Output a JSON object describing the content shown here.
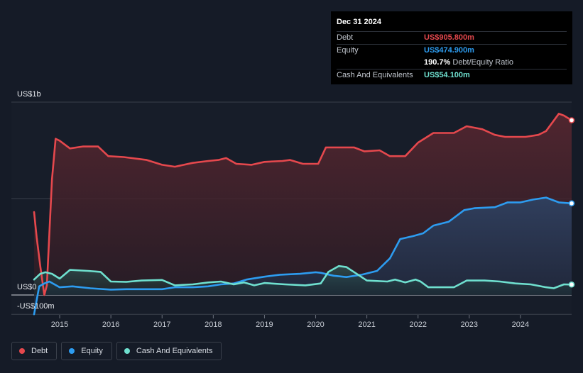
{
  "tooltip": {
    "date": "Dec 31 2024",
    "debt_label": "Debt",
    "debt_value": "US$905.800m",
    "equity_label": "Equity",
    "equity_value": "US$474.900m",
    "ratio_value": "190.7%",
    "ratio_label": "Debt/Equity Ratio",
    "cash_label": "Cash And Equivalents",
    "cash_value": "US$54.100m"
  },
  "legend": {
    "debt": "Debt",
    "equity": "Equity",
    "cash": "Cash And Equivalents"
  },
  "colors": {
    "debt": "#e5484d",
    "equity": "#2d9cf0",
    "cash": "#6fe0cf",
    "background": "#151b27"
  },
  "chart_data": {
    "type": "area",
    "title": "",
    "xlabel": "",
    "ylabel": "",
    "y_axis_labels": [
      "US$1b",
      "US$0",
      "-US$100m"
    ],
    "ylim": [
      -100,
      1000
    ],
    "xlim": [
      2014.5,
      2025.0
    ],
    "x_tick_labels": [
      "2015",
      "2016",
      "2017",
      "2018",
      "2019",
      "2020",
      "2021",
      "2022",
      "2023",
      "2024"
    ],
    "x_ticks": [
      2015,
      2016,
      2017,
      2018,
      2019,
      2020,
      2021,
      2022,
      2023,
      2024
    ],
    "units": "US$ millions",
    "series": [
      {
        "name": "Debt",
        "key": "debt",
        "points": [
          [
            2014.5,
            430
          ],
          [
            2014.55,
            300
          ],
          [
            2014.62,
            150
          ],
          [
            2014.7,
            0
          ],
          [
            2014.75,
            50
          ],
          [
            2014.85,
            600
          ],
          [
            2014.92,
            810
          ],
          [
            2015.0,
            800
          ],
          [
            2015.2,
            760
          ],
          [
            2015.45,
            770
          ],
          [
            2015.75,
            770
          ],
          [
            2015.95,
            720
          ],
          [
            2016.25,
            715
          ],
          [
            2016.7,
            700
          ],
          [
            2017.0,
            675
          ],
          [
            2017.25,
            665
          ],
          [
            2017.6,
            685
          ],
          [
            2017.9,
            695
          ],
          [
            2018.1,
            700
          ],
          [
            2018.25,
            710
          ],
          [
            2018.45,
            680
          ],
          [
            2018.75,
            675
          ],
          [
            2019.0,
            690
          ],
          [
            2019.35,
            695
          ],
          [
            2019.5,
            700
          ],
          [
            2019.75,
            680
          ],
          [
            2020.05,
            680
          ],
          [
            2020.2,
            765
          ],
          [
            2020.55,
            765
          ],
          [
            2020.75,
            765
          ],
          [
            2020.95,
            745
          ],
          [
            2021.25,
            750
          ],
          [
            2021.45,
            720
          ],
          [
            2021.75,
            720
          ],
          [
            2022.0,
            790
          ],
          [
            2022.3,
            840
          ],
          [
            2022.7,
            840
          ],
          [
            2022.95,
            875
          ],
          [
            2023.25,
            860
          ],
          [
            2023.5,
            830
          ],
          [
            2023.7,
            820
          ],
          [
            2024.1,
            820
          ],
          [
            2024.35,
            830
          ],
          [
            2024.5,
            850
          ],
          [
            2024.75,
            940
          ],
          [
            2024.85,
            930
          ],
          [
            2025.0,
            906
          ]
        ]
      },
      {
        "name": "Equity",
        "key": "equity",
        "points": [
          [
            2014.5,
            -100
          ],
          [
            2014.6,
            45
          ],
          [
            2014.7,
            60
          ],
          [
            2014.8,
            70
          ],
          [
            2015.0,
            40
          ],
          [
            2015.25,
            45
          ],
          [
            2015.6,
            35
          ],
          [
            2016.0,
            28
          ],
          [
            2016.3,
            30
          ],
          [
            2016.6,
            30
          ],
          [
            2017.0,
            30
          ],
          [
            2017.25,
            40
          ],
          [
            2017.6,
            40
          ],
          [
            2017.9,
            45
          ],
          [
            2018.15,
            55
          ],
          [
            2018.4,
            60
          ],
          [
            2018.65,
            80
          ],
          [
            2019.0,
            95
          ],
          [
            2019.3,
            105
          ],
          [
            2019.7,
            110
          ],
          [
            2020.0,
            118
          ],
          [
            2020.1,
            115
          ],
          [
            2020.35,
            100
          ],
          [
            2020.6,
            93
          ],
          [
            2020.9,
            105
          ],
          [
            2021.2,
            125
          ],
          [
            2021.45,
            190
          ],
          [
            2021.65,
            290
          ],
          [
            2021.9,
            305
          ],
          [
            2022.1,
            320
          ],
          [
            2022.3,
            360
          ],
          [
            2022.6,
            380
          ],
          [
            2022.9,
            440
          ],
          [
            2023.1,
            450
          ],
          [
            2023.5,
            455
          ],
          [
            2023.75,
            480
          ],
          [
            2024.0,
            480
          ],
          [
            2024.25,
            495
          ],
          [
            2024.5,
            505
          ],
          [
            2024.75,
            480
          ],
          [
            2025.0,
            475
          ]
        ]
      },
      {
        "name": "Cash And Equivalents",
        "key": "cash",
        "points": [
          [
            2014.5,
            80
          ],
          [
            2014.62,
            110
          ],
          [
            2014.72,
            118
          ],
          [
            2014.85,
            110
          ],
          [
            2015.0,
            85
          ],
          [
            2015.2,
            130
          ],
          [
            2015.55,
            125
          ],
          [
            2015.8,
            120
          ],
          [
            2016.0,
            70
          ],
          [
            2016.3,
            68
          ],
          [
            2016.6,
            75
          ],
          [
            2017.0,
            78
          ],
          [
            2017.25,
            50
          ],
          [
            2017.6,
            55
          ],
          [
            2017.9,
            65
          ],
          [
            2018.15,
            70
          ],
          [
            2018.4,
            55
          ],
          [
            2018.6,
            65
          ],
          [
            2018.8,
            50
          ],
          [
            2019.0,
            62
          ],
          [
            2019.4,
            55
          ],
          [
            2019.8,
            50
          ],
          [
            2020.1,
            60
          ],
          [
            2020.25,
            120
          ],
          [
            2020.45,
            150
          ],
          [
            2020.6,
            145
          ],
          [
            2020.8,
            110
          ],
          [
            2021.0,
            75
          ],
          [
            2021.4,
            70
          ],
          [
            2021.55,
            80
          ],
          [
            2021.75,
            65
          ],
          [
            2021.95,
            80
          ],
          [
            2022.05,
            70
          ],
          [
            2022.2,
            40
          ],
          [
            2022.7,
            40
          ],
          [
            2022.95,
            75
          ],
          [
            2023.3,
            75
          ],
          [
            2023.6,
            70
          ],
          [
            2023.9,
            60
          ],
          [
            2024.2,
            55
          ],
          [
            2024.5,
            40
          ],
          [
            2024.65,
            35
          ],
          [
            2024.85,
            55
          ],
          [
            2025.0,
            54
          ]
        ]
      }
    ]
  }
}
